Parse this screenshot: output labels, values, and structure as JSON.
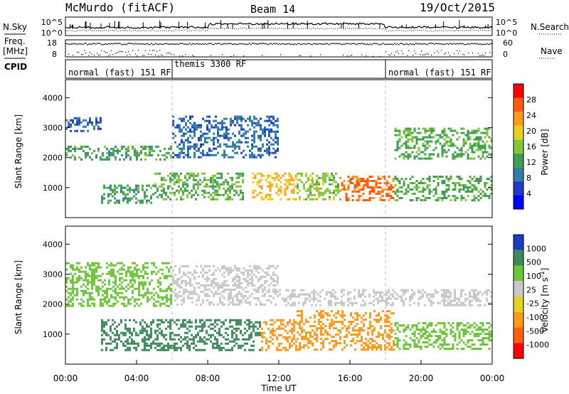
{
  "header": {
    "station": "McMurdo (fitACF)",
    "beam": "Beam 14",
    "date": "19/Oct/2015"
  },
  "status_panel": {
    "nsky_label": "N.Sky",
    "nsearch_label": "N.Search",
    "freq_label": "Freq.",
    "freq_unit": "[MHz]",
    "nave_label": "Nave",
    "cpid_label": "CPID",
    "noise_ticks_left": [
      "10^5",
      "10^0"
    ],
    "noise_ticks_right": [
      "10^5",
      "10^0"
    ],
    "freq_ticks": [
      "18",
      "8"
    ],
    "nave_ticks": [
      "60",
      "0"
    ],
    "cpid_segments": [
      {
        "label": "normal (fast) 151 RF",
        "start_hour": 0,
        "end_hour": 6
      },
      {
        "label": "themis 3300 RF",
        "start_hour": 6,
        "end_hour": 18
      },
      {
        "label": "normal (fast) 151 RF",
        "start_hour": 18,
        "end_hour": 24
      }
    ]
  },
  "chart_data": [
    {
      "type": "heatmap",
      "quantity": "Power",
      "ylabel": "Slant Range [km]",
      "ylim": [
        0,
        4600
      ],
      "yticks": [
        "1000",
        "2000",
        "3000",
        "4000"
      ],
      "xlim": [
        "00:00",
        "24:00"
      ],
      "colorbar_label": "Power [dB]",
      "colorbar_ticks": [
        "4",
        "8",
        "12",
        "16",
        "20",
        "24",
        "28"
      ],
      "colorbar_range": [
        0,
        32
      ],
      "colors": [
        "#0000ff",
        "#1e3cc8",
        "#2e7ea8",
        "#3f9f55",
        "#86c43a",
        "#e8d020",
        "#ff9a1a",
        "#ff5a10",
        "#ff0000"
      ],
      "echo_bands": [
        {
          "start_hour": 0.0,
          "end_hour": 2.0,
          "range_low_km": 2900,
          "range_high_km": 3350,
          "level": 6
        },
        {
          "start_hour": 0.0,
          "end_hour": 6.0,
          "range_low_km": 1950,
          "range_high_km": 2400,
          "level": 12
        },
        {
          "start_hour": 2.0,
          "end_hour": 5.0,
          "range_low_km": 500,
          "range_high_km": 1100,
          "level": 12
        },
        {
          "start_hour": 5.0,
          "end_hour": 10.0,
          "range_low_km": 600,
          "range_high_km": 1500,
          "level": 14
        },
        {
          "start_hour": 6.0,
          "end_hour": 12.0,
          "range_low_km": 2000,
          "range_high_km": 3400,
          "level": 7
        },
        {
          "start_hour": 10.5,
          "end_hour": 13.0,
          "range_low_km": 600,
          "range_high_km": 1500,
          "level": 22
        },
        {
          "start_hour": 13.0,
          "end_hour": 15.5,
          "range_low_km": 600,
          "range_high_km": 1500,
          "level": 16
        },
        {
          "start_hour": 15.5,
          "end_hour": 18.5,
          "range_low_km": 600,
          "range_high_km": 1400,
          "level": 27
        },
        {
          "start_hour": 18.5,
          "end_hour": 24.0,
          "range_low_km": 600,
          "range_high_km": 1400,
          "level": 13
        },
        {
          "start_hour": 18.5,
          "end_hour": 24.0,
          "range_low_km": 1950,
          "range_high_km": 3000,
          "level": 13
        }
      ]
    },
    {
      "type": "heatmap",
      "quantity": "Velocity",
      "ylabel": "Slant Range [km]",
      "xlabel": "Time UT",
      "ylim": [
        0,
        4600
      ],
      "yticks": [
        "1000",
        "2000",
        "3000",
        "4000"
      ],
      "xticks": [
        "00:00",
        "04:00",
        "08:00",
        "12:00",
        "16:00",
        "20:00",
        "00:00"
      ],
      "xlim": [
        "00:00",
        "24:00"
      ],
      "colorbar_label": "Velocity [m s^-1]",
      "colorbar_ticks": [
        "1000",
        "500",
        "100",
        "25",
        "-25",
        "-100",
        "-500",
        "-1000"
      ],
      "colors": [
        "#1a3cc0",
        "#3e8a5a",
        "#6ec63a",
        "#c8c8c8",
        "#e8d020",
        "#ff9a1a",
        "#ff6010",
        "#ff0000"
      ],
      "echo_bands": [
        {
          "start_hour": 0.0,
          "end_hour": 6.0,
          "range_low_km": 1950,
          "range_high_km": 3400,
          "level": 25
        },
        {
          "start_hour": 6.0,
          "end_hour": 12.0,
          "range_low_km": 2000,
          "range_high_km": 3300,
          "level": 0
        },
        {
          "start_hour": 12.0,
          "end_hour": 24.0,
          "range_low_km": 1950,
          "range_high_km": 2500,
          "level": 0
        },
        {
          "start_hour": 2.0,
          "end_hour": 11.0,
          "range_low_km": 500,
          "range_high_km": 1500,
          "level": 150
        },
        {
          "start_hour": 11.0,
          "end_hour": 13.0,
          "range_low_km": 500,
          "range_high_km": 1500,
          "level": -120
        },
        {
          "start_hour": 13.0,
          "end_hour": 18.5,
          "range_low_km": 500,
          "range_high_km": 1800,
          "level": -300
        },
        {
          "start_hour": 18.5,
          "end_hour": 24.0,
          "range_low_km": 500,
          "range_high_km": 1400,
          "level": 40
        }
      ]
    }
  ]
}
